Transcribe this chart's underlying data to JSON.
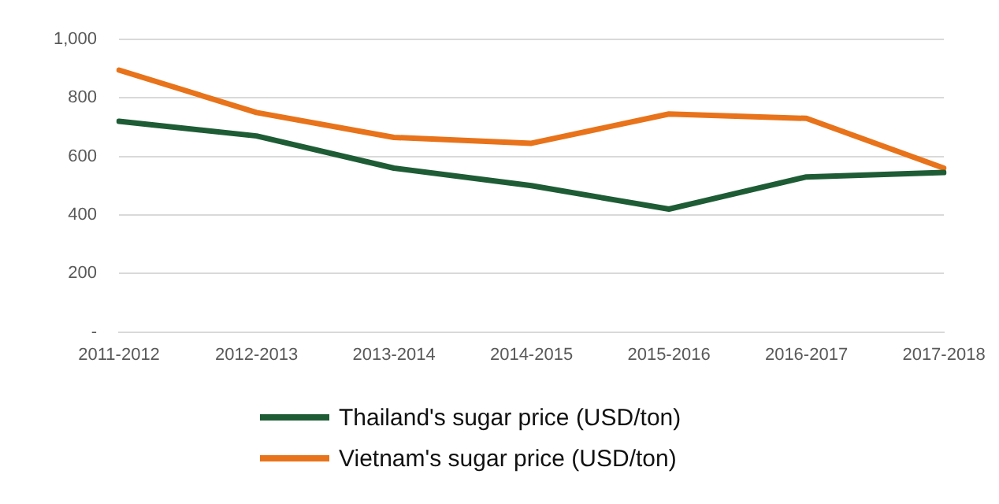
{
  "chart_data": {
    "type": "line",
    "categories": [
      "2011-2012",
      "2012-2013",
      "2013-2014",
      "2014-2015",
      "2015-2016",
      "2016-2017",
      "2017-2018"
    ],
    "series": [
      {
        "name": "Thailand's sugar price (USD/ton)",
        "color": "#1e5c35",
        "values": [
          720,
          670,
          560,
          500,
          420,
          530,
          545
        ]
      },
      {
        "name": "Vietnam's sugar price (USD/ton)",
        "color": "#e8731a",
        "values": [
          895,
          750,
          665,
          645,
          745,
          730,
          560
        ]
      }
    ],
    "ylim": [
      0,
      1000
    ],
    "yticks": [
      {
        "value": 0,
        "label": "-"
      },
      200,
      400,
      600,
      800,
      {
        "value": 1000,
        "label": "1,000"
      }
    ],
    "grid": "y",
    "legend": "bottom",
    "marker": "none",
    "line_style": "solid"
  }
}
